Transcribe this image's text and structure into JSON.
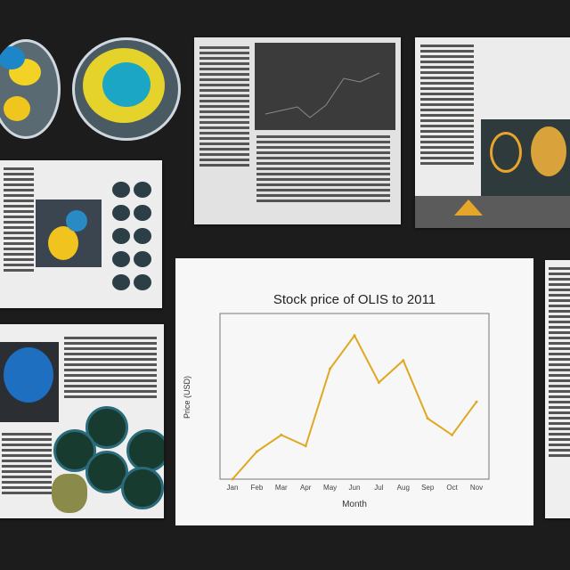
{
  "collage": {
    "chart_title": "Stock price of OLIS to 2011",
    "chart_xlabel": "Month",
    "chart_ylabel": "Price (USD)"
  },
  "chart_data": {
    "type": "line",
    "title": "Stock price of OLIS to 2011",
    "xlabel": "Month",
    "ylabel": "Price (USD)",
    "categories": [
      "Jan",
      "Feb",
      "Mar",
      "Apr",
      "May",
      "Jun",
      "Jul",
      "Aug",
      "Sep",
      "Oct",
      "Nov"
    ],
    "values": [
      0,
      10,
      16,
      12,
      40,
      52,
      35,
      43,
      22,
      16,
      28
    ],
    "ylim": [
      0,
      60
    ],
    "grid": false,
    "series_color": "#e0a820"
  },
  "colors": {
    "background": "#1c1c1c",
    "accent": "#e0a820",
    "teal": "#1f8fb0"
  }
}
